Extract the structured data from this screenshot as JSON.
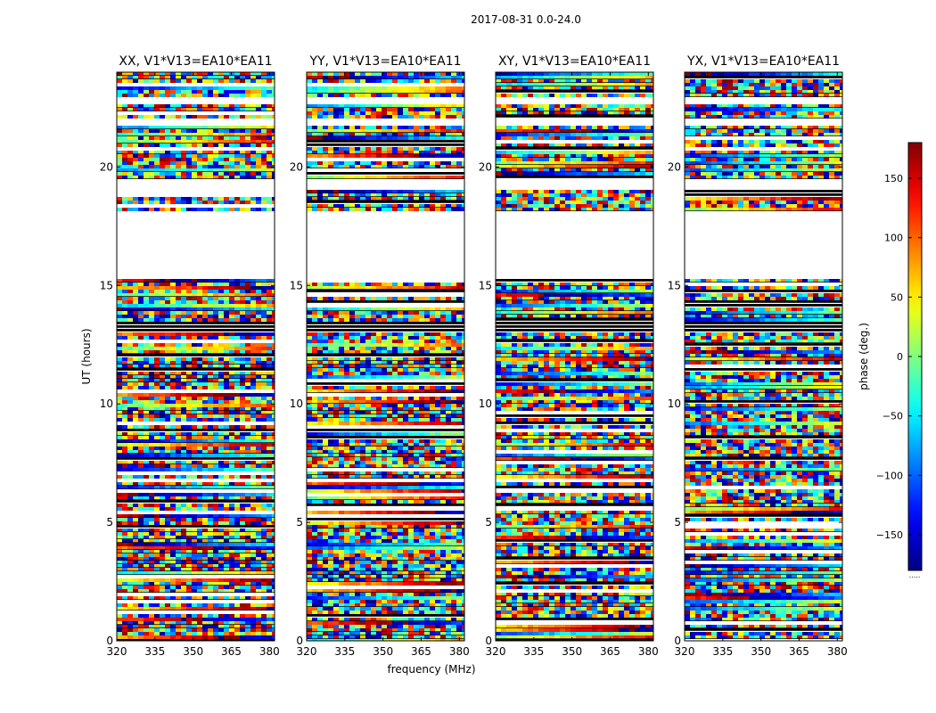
{
  "figure": {
    "suptitle": "2017-08-31 0.0-24.0"
  },
  "chart_data": {
    "type": "heatmap",
    "title": "2017-08-31 0.0-24.0",
    "xlabel": "frequency (MHz)",
    "ylabel": "UT (hours)",
    "xlim": [
      320,
      382
    ],
    "ylim": [
      0,
      24
    ],
    "xticks": [
      "320",
      "335",
      "350",
      "365",
      "380"
    ],
    "yticks": [
      "0",
      "5",
      "10",
      "15",
      "20"
    ],
    "panels": [
      {
        "title": "XX, V1*V13=EA10*EA11",
        "polarization": "XX"
      },
      {
        "title": "YY, V1*V13=EA10*EA11",
        "polarization": "YY"
      },
      {
        "title": "XY, V1*V13=EA10*EA11",
        "polarization": "XY"
      },
      {
        "title": "YX, V1*V13=EA10*EA11",
        "polarization": "YX"
      }
    ],
    "colorbar": {
      "label": "phase (deg.)",
      "range": [
        -180,
        180
      ],
      "ticks": [
        "150",
        "100",
        "50",
        "0",
        "−50",
        "−100",
        "−150"
      ],
      "colormap": "jet"
    },
    "data_gaps_ut_hours": [
      [
        15.2,
        18.2
      ],
      [
        19.1,
        19.5
      ],
      [
        21.7,
        22.0
      ],
      [
        22.6,
        23.0
      ]
    ],
    "dense_blocks_ut_hours": [
      [
        13.0,
        13.5
      ]
    ],
    "footer_mark": "....."
  }
}
